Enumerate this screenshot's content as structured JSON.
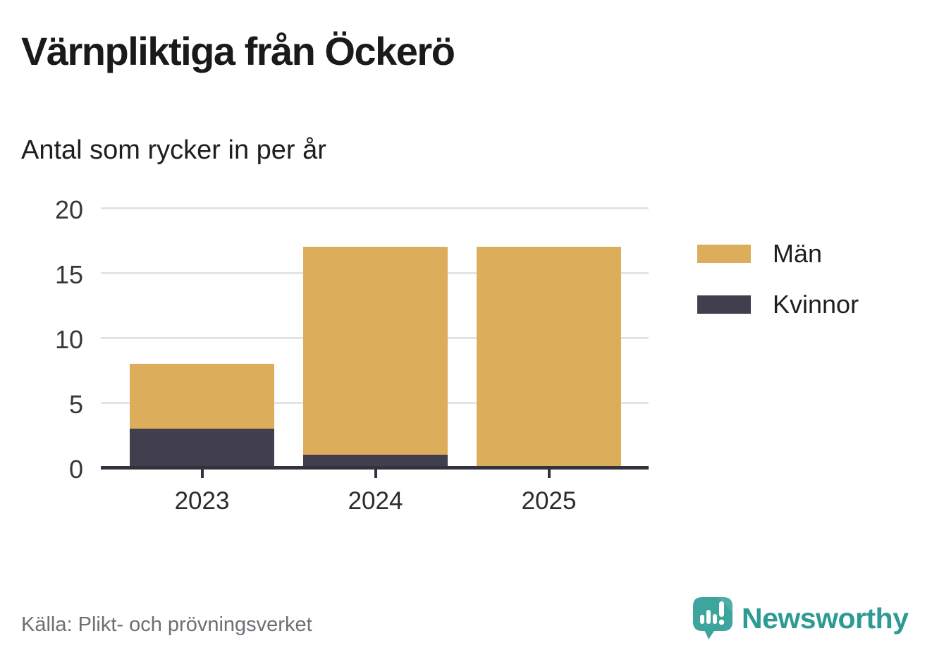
{
  "title": "Värnpliktiga från Öckerö",
  "subtitle": "Antal som rycker in per år",
  "source": "Källa: Plikt- och prövningsverket",
  "brand": {
    "name": "Newsworthy",
    "icon": "bar-chart-speech-bubble-icon",
    "color": "#2d9a94",
    "icon_color": "#3ea59e"
  },
  "chart_data": {
    "type": "bar",
    "stacked": true,
    "title": "Värnpliktiga från Öckerö",
    "subtitle": "Antal som rycker in per år",
    "categories": [
      "2023",
      "2024",
      "2025"
    ],
    "series": [
      {
        "name": "Män",
        "color": "#dcae5c",
        "values": [
          5,
          16,
          17
        ]
      },
      {
        "name": "Kvinnor",
        "color": "#413f4e",
        "values": [
          3,
          1,
          0
        ]
      }
    ],
    "stack_order_bottom_to_top": [
      "Kvinnor",
      "Män"
    ],
    "totals": [
      8,
      17,
      17
    ],
    "xlabel": "",
    "ylabel": "",
    "ylim": [
      0,
      20
    ],
    "yticks": [
      0,
      5,
      10,
      15,
      20
    ],
    "grid": true,
    "legend_position": "right",
    "colors": {
      "grid": "#e4e4e4",
      "axis": "#33333d",
      "tick_label": "#383838"
    }
  }
}
